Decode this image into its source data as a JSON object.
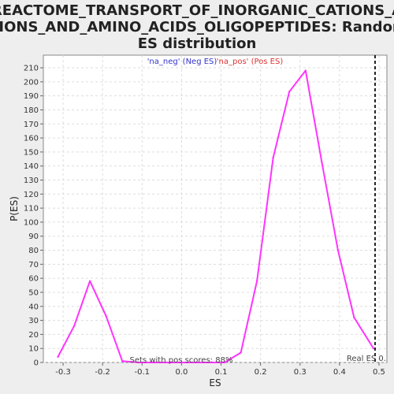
{
  "window": {
    "background": "#eeeeee",
    "plot_background": "#ffffff"
  },
  "chart_data": {
    "type": "line",
    "title_lines": [
      "REACTOME_TRANSPORT_OF_INORGANIC_CATIONS_A",
      "NIONS_AND_AMINO_ACIDS_OLIGOPEPTIDES: Random",
      "ES distribution"
    ],
    "xlabel": "ES",
    "ylabel": "P(ES)",
    "xlim": [
      -0.35,
      0.52
    ],
    "ylim": [
      0,
      219
    ],
    "xticks": [
      -0.3,
      -0.2,
      -0.1,
      0.0,
      0.1,
      0.2,
      0.3,
      0.4,
      0.5
    ],
    "xtick_labels": [
      "-0.3",
      "-0.2",
      "-0.1",
      "0.0",
      "0.1",
      "0.2",
      "0.3",
      "0.4",
      "0.5"
    ],
    "yticks": [
      0,
      10,
      20,
      30,
      40,
      50,
      60,
      70,
      80,
      90,
      100,
      110,
      120,
      130,
      140,
      150,
      160,
      170,
      180,
      190,
      200,
      210
    ],
    "ytick_labels": [
      "0",
      "10",
      "20",
      "30",
      "40",
      "50",
      "60",
      "70",
      "80",
      "90",
      "100",
      "110",
      "120",
      "130",
      "140",
      "150",
      "160",
      "170",
      "180",
      "190",
      "200",
      "210"
    ],
    "grid": true,
    "legend": {
      "placement": "top-center",
      "items": [
        {
          "label": "'na_neg' (Neg ES)",
          "color": "#3333cc"
        },
        {
          "label": "'na_pos' (Pos ES)",
          "color": "#dd3333"
        }
      ]
    },
    "series": [
      {
        "color": "#ff33ff",
        "x": [
          -0.313,
          -0.272,
          -0.232,
          -0.191,
          -0.15,
          -0.109,
          -0.068,
          -0.027,
          0.014,
          0.055,
          0.096,
          0.109,
          0.15,
          0.191,
          0.232,
          0.273,
          0.314,
          0.355,
          0.396,
          0.437,
          0.486
        ],
        "y": [
          4,
          26,
          58,
          33,
          1,
          0,
          0,
          0,
          0,
          0,
          0,
          0,
          7,
          58,
          146,
          193,
          208,
          143,
          80,
          32,
          10
        ]
      }
    ],
    "real_es": {
      "x": 0.49,
      "label": "Real ES 0."
    },
    "annotation": "Sets with pos scores: 88%"
  }
}
